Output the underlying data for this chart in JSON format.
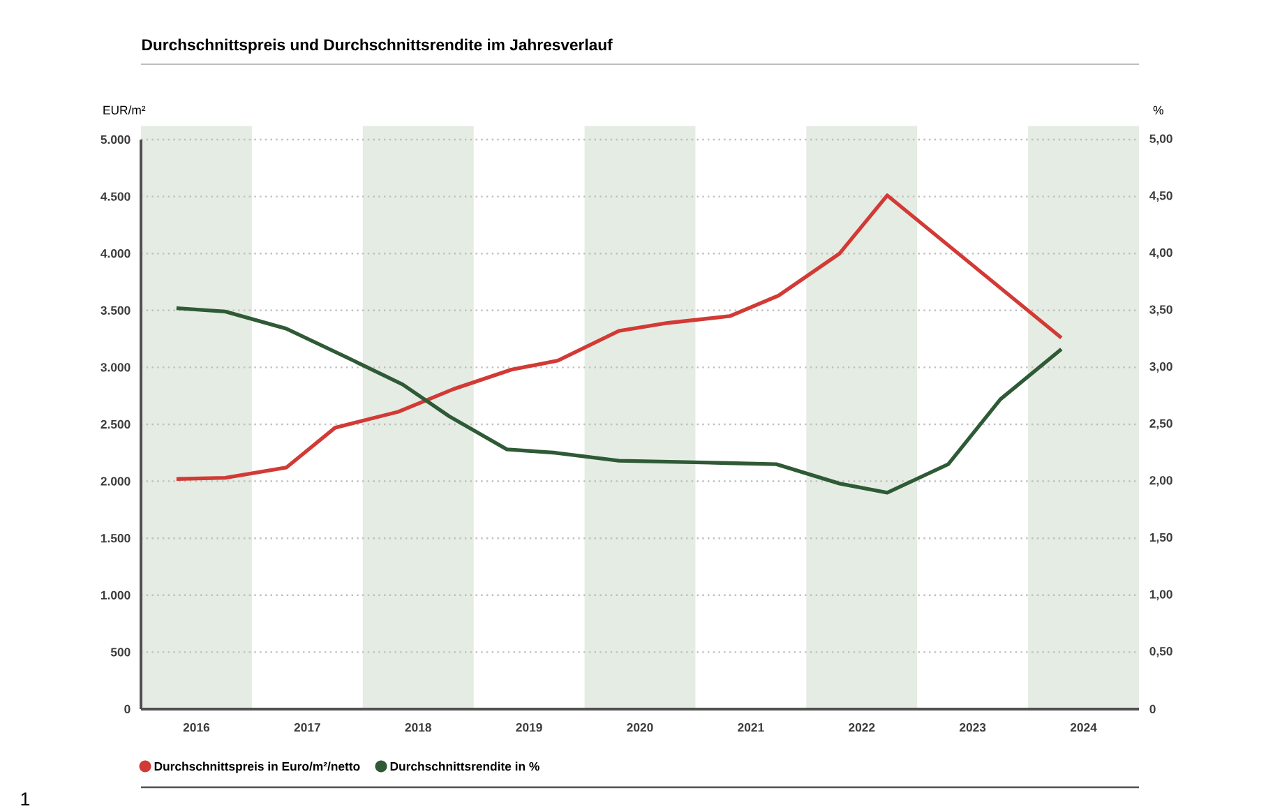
{
  "chart_data": {
    "type": "line",
    "title": "Durchschnittspreis und Durchschnittsrendite im Jahresverlauf",
    "ylabel": "EUR/m²",
    "y2label": "%",
    "xlim": [
      2015.5,
      2024.5
    ],
    "xticks": [
      2016,
      2017,
      2018,
      2019,
      2020,
      2021,
      2022,
      2023,
      2024
    ],
    "ylim": [
      0,
      5000
    ],
    "yticks": [
      {
        "value": 0,
        "label": "0"
      },
      {
        "value": 500,
        "label": "500"
      },
      {
        "value": 1000,
        "label": "1.000"
      },
      {
        "value": 1500,
        "label": "1.500"
      },
      {
        "value": 2000,
        "label": "2.000"
      },
      {
        "value": 2500,
        "label": "2.500"
      },
      {
        "value": 3000,
        "label": "3.000"
      },
      {
        "value": 3500,
        "label": "3.500"
      },
      {
        "value": 4000,
        "label": "4.000"
      },
      {
        "value": 4500,
        "label": "4.500"
      },
      {
        "value": 5000,
        "label": "5.000"
      }
    ],
    "y2lim": [
      0,
      5
    ],
    "y2ticks": [
      {
        "value": 0,
        "label": "0"
      },
      {
        "value": 0.5,
        "label": "0,50"
      },
      {
        "value": 1,
        "label": "1,00"
      },
      {
        "value": 1.5,
        "label": "1,50"
      },
      {
        "value": 2,
        "label": "2,00"
      },
      {
        "value": 2.5,
        "label": "2,50"
      },
      {
        "value": 3,
        "label": "3,00"
      },
      {
        "value": 3.5,
        "label": "3,50"
      },
      {
        "value": 4,
        "label": "4,00"
      },
      {
        "value": 4.5,
        "label": "4,50"
      },
      {
        "value": 5,
        "label": "5,00"
      }
    ],
    "series": [
      {
        "name": "Durchschnittspreis in Euro/m²/netto",
        "color": "#d23a35",
        "x": [
          2015.82,
          2016.26,
          2016.81,
          2017.25,
          2017.82,
          2018.32,
          2018.84,
          2019.26,
          2019.81,
          2020.25,
          2020.81,
          2021.25,
          2021.8,
          2022.23,
          2023.8
        ],
        "values": [
          2020,
          2030,
          2120,
          2470,
          2610,
          2810,
          2980,
          3060,
          3320,
          3390,
          3450,
          3630,
          4000,
          4510,
          3260
        ]
      },
      {
        "name": "Durchschnittsrendite in %",
        "color": "#2e5a36",
        "axis": "y2",
        "x": [
          2015.82,
          2016.26,
          2016.81,
          2017.33,
          2017.86,
          2018.28,
          2018.8,
          2019.24,
          2019.81,
          2020.79,
          2021.23,
          2021.8,
          2022.23,
          2022.78,
          2023.25,
          2023.8
        ],
        "values": [
          3.52,
          3.49,
          3.34,
          3.1,
          2.85,
          2.57,
          2.28,
          2.25,
          2.18,
          2.16,
          2.15,
          1.98,
          1.9,
          2.15,
          2.72,
          3.16
        ]
      }
    ],
    "bands": [
      {
        "axis": "x",
        "from": 2015.5,
        "to": 2016.5,
        "color": "#e5ece3"
      },
      {
        "axis": "x",
        "from": 2017.5,
        "to": 2018.5,
        "color": "#e5ece3"
      },
      {
        "axis": "x",
        "from": 2019.5,
        "to": 2020.5,
        "color": "#e5ece3"
      },
      {
        "axis": "x",
        "from": 2021.5,
        "to": 2022.5,
        "color": "#e5ece3"
      },
      {
        "axis": "x",
        "from": 2023.5,
        "to": 2024.5,
        "color": "#e5ece3"
      }
    ],
    "annotations": [
      "1"
    ],
    "grid": "y",
    "legend": "bottom left",
    "marker": "none",
    "line_style": "solid"
  }
}
